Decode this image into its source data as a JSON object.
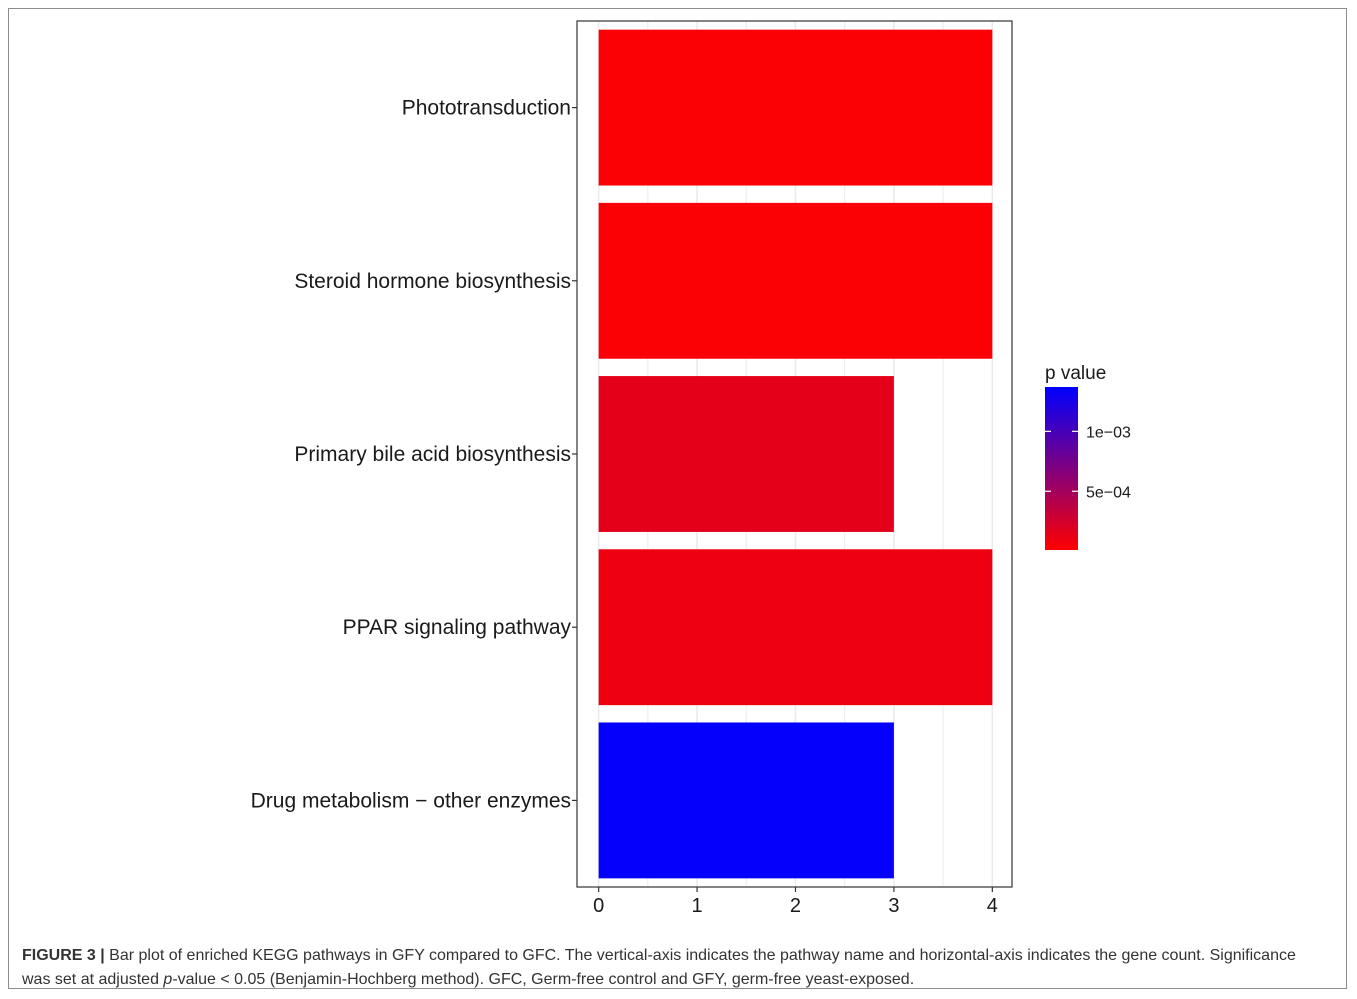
{
  "chart_data": {
    "type": "bar",
    "orientation": "horizontal",
    "categories": [
      "Phototransduction",
      "Steroid hormone biosynthesis",
      "Primary bile acid biosynthesis",
      "PPAR signaling pathway",
      "Drug metabolism − other enzymes"
    ],
    "values": [
      4,
      4,
      3,
      4,
      3
    ],
    "p_values": [
      3e-05,
      3e-05,
      0.00015,
      0.0001,
      0.00135
    ],
    "xlim": [
      -0.22,
      4.2
    ],
    "x_ticks": [
      "0",
      "1",
      "2",
      "3",
      "4"
    ],
    "grid": true,
    "legend": {
      "title": "p value",
      "placement": "right",
      "colorbar_range": [
        1e-05,
        0.00137
      ],
      "ticks": [
        {
          "label": "1e−03",
          "value": 0.001
        },
        {
          "label": "5e−04",
          "value": 0.0005
        }
      ],
      "color_low": "#ff0000",
      "color_high": "#0000ff"
    },
    "colors": {
      "panel_border": "#333333",
      "grid": "#ebebeb"
    }
  },
  "caption": {
    "label": "FIGURE 3 |",
    "part1": " Bar plot of enriched KEGG pathways in GFY compared to GFC. The vertical-axis indicates the pathway name and horizontal-axis indicates the gene count. Significance was set at adjusted ",
    "italic": "p",
    "part2": "-value < 0.05 (Benjamin-Hochberg method). GFC, Germ-free control and GFY, germ-free yeast-exposed."
  }
}
